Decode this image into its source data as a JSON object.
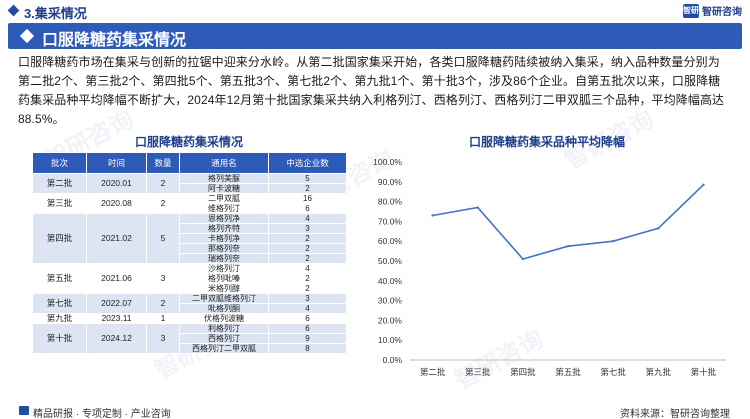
{
  "header": {
    "section_title": "3.集采情况",
    "logo_mark": "智研",
    "logo_text": "智研咨询",
    "banner_title": "口服降糖药集采情况"
  },
  "intro": "口服降糖药市场在集采与创新的拉锯中迎来分水岭。从第二批国家集采开始，各类口服降糖药陆续被纳入集采，纳入品种数量分别为第二批2个、第三批2个、第四批5个、第五批3个、第七批2个、第九批1个、第十批3个，涉及86个企业。自第五批次以来，口服降糖药集采品种平均降幅不断扩大，2024年12月第十批国家集采共纳入利格列汀、西格列汀、西格列汀二甲双胍三个品种，平均降幅高达88.5%。",
  "table": {
    "title": "口服降糖药集采情况",
    "headers": [
      "批次",
      "时间",
      "数量",
      "通用名",
      "中选企业数"
    ],
    "groups": [
      {
        "batch": "第二批",
        "date": "2020.01",
        "count": "2",
        "drugs": [
          [
            "格列美脲",
            "5"
          ],
          [
            "阿卡波糖",
            "2"
          ]
        ]
      },
      {
        "batch": "第三批",
        "date": "2020.08",
        "count": "2",
        "drugs": [
          [
            "二甲双胍",
            "16"
          ],
          [
            "维格列汀",
            "6"
          ]
        ]
      },
      {
        "batch": "第四批",
        "date": "2021.02",
        "count": "5",
        "drugs": [
          [
            "恩格列净",
            "4"
          ],
          [
            "格列齐特",
            "3"
          ],
          [
            "卡格列净",
            "2"
          ],
          [
            "那格列奈",
            "2"
          ],
          [
            "瑞格列奈",
            "2"
          ]
        ]
      },
      {
        "batch": "第五批",
        "date": "2021.06",
        "count": "3",
        "drugs": [
          [
            "沙格列汀",
            "4"
          ],
          [
            "格列吡嗪",
            "2"
          ],
          [
            "米格列醇",
            "2"
          ]
        ]
      },
      {
        "batch": "第七批",
        "date": "2022.07",
        "count": "2",
        "drugs": [
          [
            "二甲双胍维格列汀",
            "3"
          ],
          [
            "吡格列酮",
            "4"
          ]
        ]
      },
      {
        "batch": "第九批",
        "date": "2023.11",
        "count": "1",
        "drugs": [
          [
            "伏格列波糖",
            "6"
          ]
        ]
      },
      {
        "batch": "第十批",
        "date": "2024.12",
        "count": "3",
        "drugs": [
          [
            "利格列汀",
            "6"
          ],
          [
            "西格列汀",
            "9"
          ],
          [
            "西格列汀二甲双胍",
            "8"
          ]
        ]
      }
    ]
  },
  "chart_data": {
    "type": "line",
    "title": "口服降糖药集采品种平均降幅",
    "categories": [
      "第二批",
      "第三批",
      "第四批",
      "第五批",
      "第七批",
      "第九批",
      "第十批"
    ],
    "values": [
      73.0,
      77.0,
      51.0,
      57.5,
      60.0,
      66.5,
      88.5
    ],
    "yticks": [
      "0.0%",
      "10.0%",
      "20.0%",
      "30.0%",
      "40.0%",
      "50.0%",
      "60.0%",
      "70.0%",
      "80.0%",
      "90.0%",
      "100.0%"
    ],
    "ylim": [
      0,
      100
    ],
    "grid": false,
    "legend": "none",
    "line_color": "#4472c4"
  },
  "footer": {
    "left": "精品研报 · 专项定制 · 产业咨询",
    "right": "资料来源：智研咨询整理"
  },
  "watermark": "智研咨询"
}
